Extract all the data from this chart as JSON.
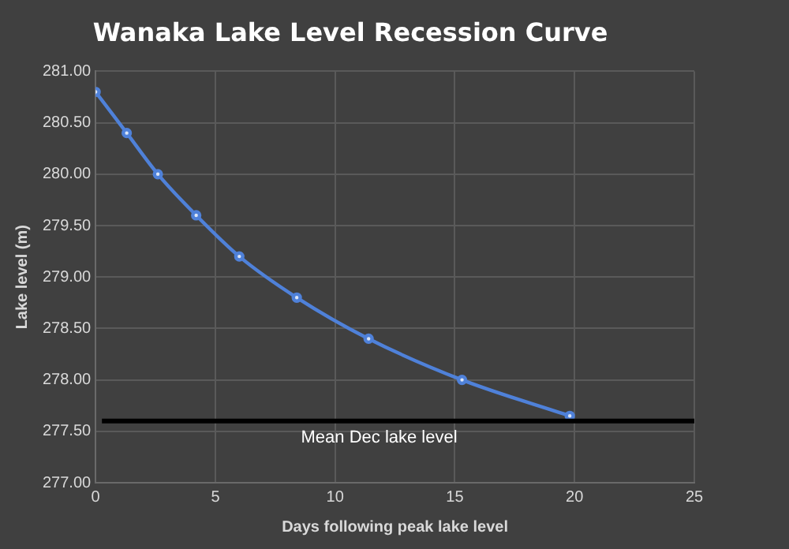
{
  "chart_data": {
    "type": "line",
    "title": "Wanaka Lake Level Recession Curve",
    "xlabel": "Days following peak lake level",
    "ylabel": "Lake level (m)",
    "series": [
      {
        "color": "#4f81d9",
        "x": [
          0,
          1.3,
          2.6,
          4.2,
          6.0,
          8.4,
          11.4,
          15.3,
          19.8
        ],
        "values": [
          280.8,
          280.4,
          280.0,
          279.6,
          279.2,
          278.8,
          278.4,
          278.0,
          277.65
        ]
      }
    ],
    "xlim": [
      0,
      25
    ],
    "xticks": [
      0,
      5,
      10,
      15,
      20,
      25
    ],
    "ylim": [
      277,
      281
    ],
    "yticks": [
      {
        "value": 277,
        "label": "277.00"
      },
      {
        "value": 277.5,
        "label": "277.50"
      },
      {
        "value": 278,
        "label": "278.00"
      },
      {
        "value": 278.5,
        "label": "278.50"
      },
      {
        "value": 279,
        "label": "279.00"
      },
      {
        "value": 279.5,
        "label": "279.50"
      },
      {
        "value": 280,
        "label": "280.00"
      },
      {
        "value": 280.5,
        "label": "280.50"
      },
      {
        "value": 281,
        "label": "281.00"
      }
    ],
    "ref_lines": [
      {
        "axis": "y",
        "value": 277.6,
        "label": "Mean Dec lake level",
        "color": "#000000"
      }
    ],
    "grid": true,
    "legend": false,
    "marker": "circle",
    "line_style": "solid"
  }
}
